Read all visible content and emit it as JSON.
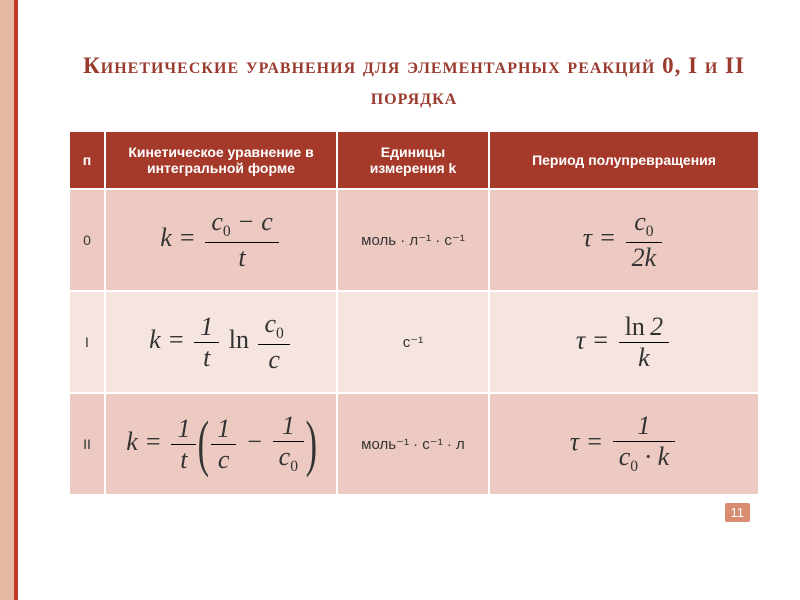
{
  "title": "Кинетические уравнения для элементарных реакций 0, I и II порядка",
  "headers": {
    "n": "п",
    "eq": "Кинетическое уравнение в интегральной форме",
    "units": "Единицы измерения k",
    "halflife": "Период полупревращения"
  },
  "rows": [
    {
      "order": "0",
      "units": "моль · л⁻¹ · с⁻¹"
    },
    {
      "order": "I",
      "units": "с⁻¹"
    },
    {
      "order": "II",
      "units": "моль⁻¹ · с⁻¹ · л"
    }
  ],
  "page_number": "11",
  "colors": {
    "accent_border": "#e6b9a4",
    "accent_line": "#c0392b",
    "header_bg": "#a63a2a",
    "row_bg": "#eccac2",
    "row_alt_bg": "#f5e4df",
    "title_color": "#9a3b2e",
    "badge_bg": "#d98c70"
  },
  "formulas": {
    "row0_k": "k = (c0 − c) / t",
    "row0_tau": "τ = c0 / (2k)",
    "row1_k": "k = (1/t) · ln(c0 / c)",
    "row1_tau": "τ = ln2 / k",
    "row2_k": "k = (1/t) · (1/c − 1/c0)",
    "row2_tau": "τ = 1 / (c0 · k)"
  }
}
